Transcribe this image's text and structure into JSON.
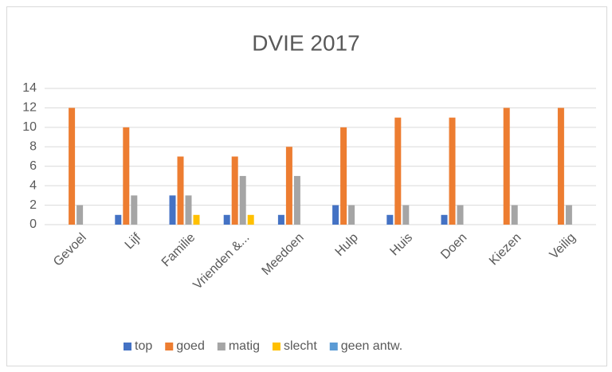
{
  "chart_data": {
    "type": "bar",
    "title": "DVIE 2017",
    "categories": [
      "Gevoel",
      "Lijf",
      "Familie",
      "Vrienden &...",
      "Meedoen",
      "Hulp",
      "Huis",
      "Doen",
      "Kiezen",
      "Veilig"
    ],
    "series": [
      {
        "name": "top",
        "color": "#4472c4",
        "values": [
          0,
          1,
          3,
          1,
          1,
          2,
          1,
          1,
          0,
          0
        ]
      },
      {
        "name": "goed",
        "color": "#ed7d31",
        "values": [
          12,
          10,
          7,
          7,
          8,
          10,
          11,
          11,
          12,
          12
        ]
      },
      {
        "name": "matig",
        "color": "#a5a5a5",
        "values": [
          2,
          3,
          3,
          5,
          5,
          2,
          2,
          2,
          2,
          2
        ]
      },
      {
        "name": "slecht",
        "color": "#ffc000",
        "values": [
          0,
          0,
          1,
          1,
          0,
          0,
          0,
          0,
          0,
          0
        ]
      },
      {
        "name": "geen antw.",
        "color": "#5b9bd5",
        "values": [
          0,
          0,
          0,
          0,
          0,
          0,
          0,
          0,
          0,
          0
        ]
      }
    ],
    "ylim": [
      0,
      14
    ],
    "yticks": [
      0,
      2,
      4,
      6,
      8,
      10,
      12,
      14
    ],
    "grid": true,
    "legend": "bottom"
  }
}
